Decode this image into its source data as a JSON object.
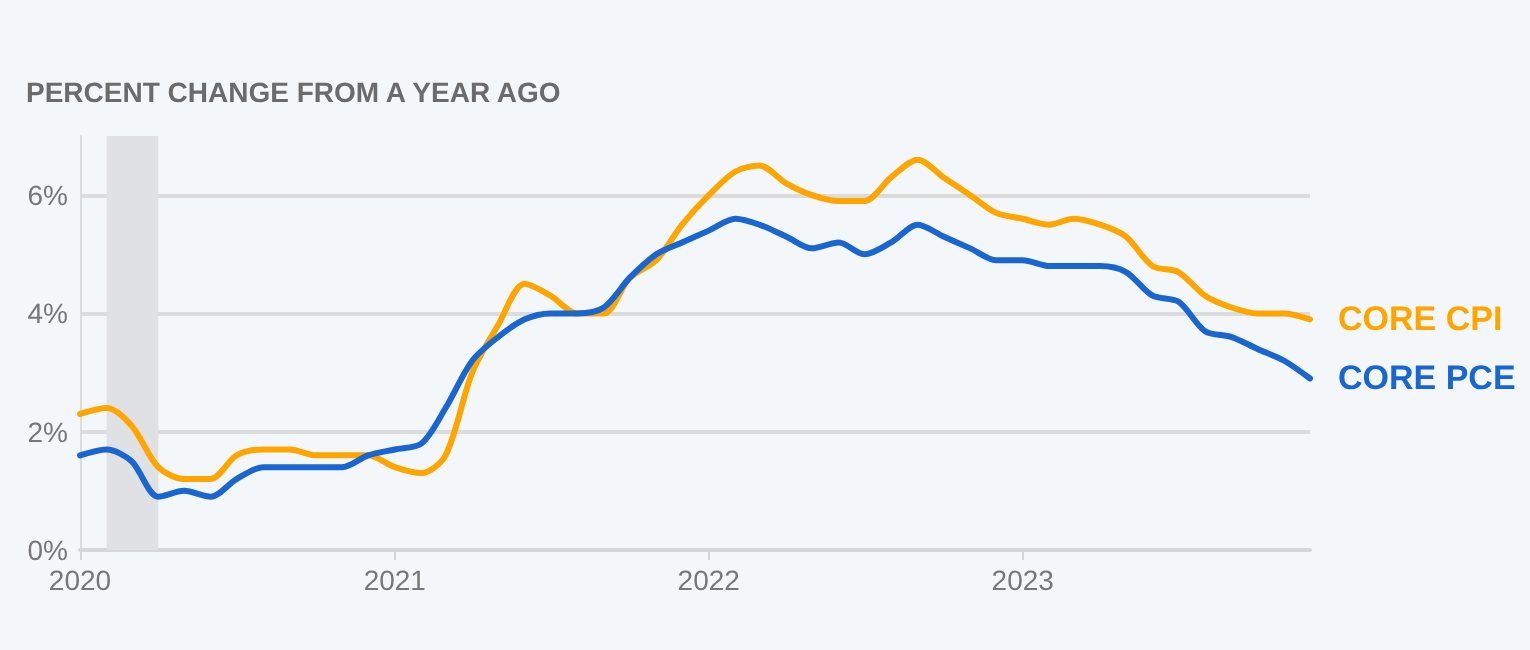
{
  "chart_data": {
    "type": "line",
    "title": "PERCENT CHANGE FROM A YEAR AGO",
    "x": [
      "2020-01",
      "2020-02",
      "2020-03",
      "2020-04",
      "2020-05",
      "2020-06",
      "2020-07",
      "2020-08",
      "2020-09",
      "2020-10",
      "2020-11",
      "2020-12",
      "2021-01",
      "2021-02",
      "2021-03",
      "2021-04",
      "2021-05",
      "2021-06",
      "2021-07",
      "2021-08",
      "2021-09",
      "2021-10",
      "2021-11",
      "2021-12",
      "2022-01",
      "2022-02",
      "2022-03",
      "2022-04",
      "2022-05",
      "2022-06",
      "2022-07",
      "2022-08",
      "2022-09",
      "2022-10",
      "2022-11",
      "2022-12",
      "2023-01",
      "2023-02",
      "2023-03",
      "2023-04",
      "2023-05",
      "2023-06",
      "2023-07",
      "2023-08",
      "2023-09",
      "2023-10",
      "2023-11",
      "2023-12"
    ],
    "series": [
      {
        "name": "CORE CPI",
        "color": "#ffa500",
        "values": [
          2.3,
          2.4,
          2.1,
          1.4,
          1.2,
          1.2,
          1.6,
          1.7,
          1.7,
          1.6,
          1.6,
          1.6,
          1.4,
          1.3,
          1.6,
          3.0,
          3.8,
          4.5,
          4.3,
          4.0,
          4.0,
          4.6,
          4.9,
          5.5,
          6.0,
          6.4,
          6.5,
          6.2,
          6.0,
          5.9,
          5.9,
          6.3,
          6.6,
          6.3,
          6.0,
          5.7,
          5.6,
          5.5,
          5.6,
          5.5,
          5.3,
          4.8,
          4.7,
          4.3,
          4.1,
          4.0,
          4.0,
          3.9
        ]
      },
      {
        "name": "CORE PCE",
        "color": "#1a66d0",
        "values": [
          1.6,
          1.7,
          1.5,
          0.9,
          1.0,
          0.9,
          1.2,
          1.4,
          1.4,
          1.4,
          1.4,
          1.6,
          1.7,
          1.8,
          2.4,
          3.2,
          3.6,
          3.9,
          4.0,
          4.0,
          4.1,
          4.6,
          5.0,
          5.2,
          5.4,
          5.6,
          5.5,
          5.3,
          5.1,
          5.2,
          5.0,
          5.2,
          5.5,
          5.3,
          5.1,
          4.9,
          4.9,
          4.8,
          4.8,
          4.8,
          4.7,
          4.3,
          4.2,
          3.7,
          3.6,
          3.4,
          3.2,
          2.9
        ]
      }
    ],
    "xlim": [
      "2020-01",
      "2023-12"
    ],
    "xticks": [
      "2020",
      "2021",
      "2022",
      "2023"
    ],
    "ylim": [
      0,
      7
    ],
    "yticks": [
      {
        "value": 0,
        "label": "0%"
      },
      {
        "value": 2,
        "label": "2%"
      },
      {
        "value": 4,
        "label": "4%"
      },
      {
        "value": 6,
        "label": "6%"
      }
    ],
    "grid": "y",
    "legend": "right",
    "bands": [
      {
        "axis": "x",
        "from": "2020-02",
        "to": "2020-04",
        "color": "#dfe1e4"
      }
    ]
  }
}
